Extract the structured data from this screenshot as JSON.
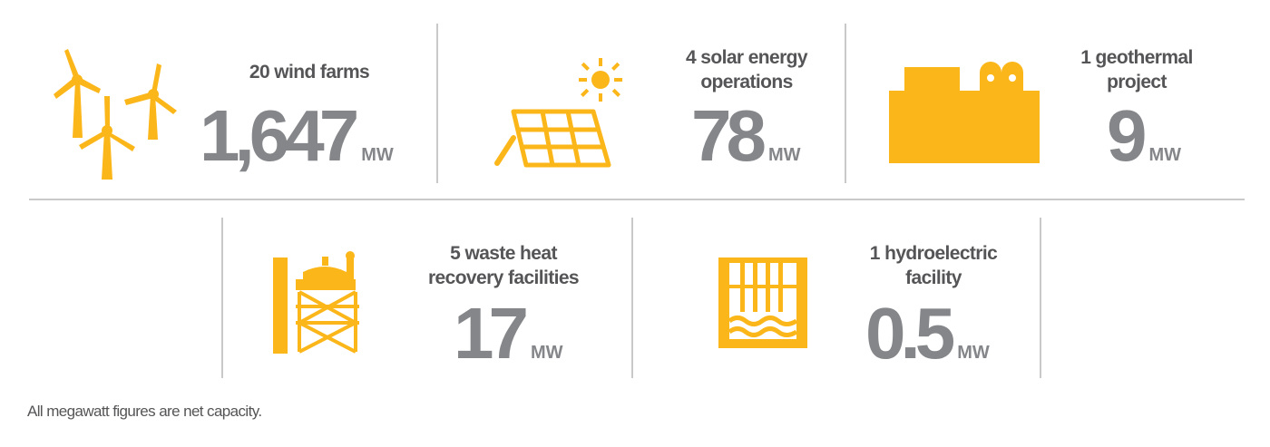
{
  "accent_color": "#fbb61a",
  "value_color": "#848689",
  "text_color": "#555557",
  "stats": [
    {
      "icon": "wind-turbine-icon",
      "label_lines": [
        "20 wind farms"
      ],
      "value": "1,647",
      "unit": "MW"
    },
    {
      "icon": "solar-panel-icon",
      "label_lines": [
        "4 solar energy",
        "operations"
      ],
      "value": "78",
      "unit": "MW"
    },
    {
      "icon": "geothermal-plant-icon",
      "label_lines": [
        "1 geothermal",
        "project"
      ],
      "value": "9",
      "unit": "MW"
    },
    {
      "icon": "waste-heat-facility-icon",
      "label_lines": [
        "5 waste heat",
        "recovery facilities"
      ],
      "value": "17",
      "unit": "MW"
    },
    {
      "icon": "hydroelectric-dam-icon",
      "label_lines": [
        "1 hydroelectric",
        "facility"
      ],
      "value": "0.5",
      "unit": "MW"
    }
  ],
  "footnote": "All megawatt figures are net capacity."
}
